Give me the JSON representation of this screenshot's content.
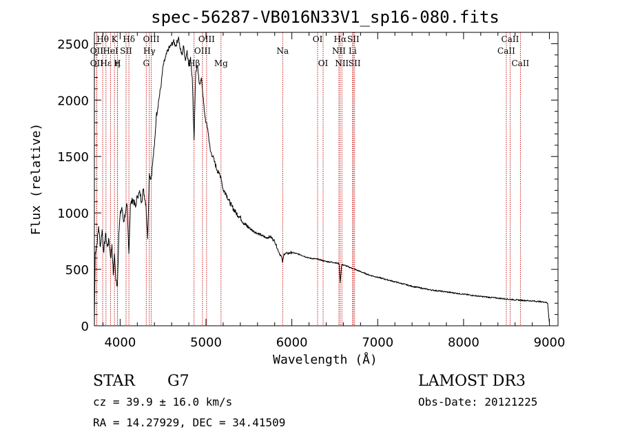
{
  "chart_data": {
    "type": "line",
    "title": "spec-56287-VB016N33V1_sp16-080.fits",
    "xlabel": "Wavelength (Å)",
    "ylabel": "Flux (relative)",
    "xlim": [
      3700,
      9100
    ],
    "ylim": [
      0,
      2600
    ],
    "x_ticks": [
      4000,
      5000,
      6000,
      7000,
      8000,
      9000
    ],
    "y_ticks": [
      0,
      500,
      1000,
      1500,
      2000,
      2500
    ],
    "line_color": "#000000",
    "marker_color": "#c00000",
    "series": [
      {
        "name": "flux",
        "x": [
          3700,
          3710,
          3730,
          3750,
          3770,
          3790,
          3810,
          3830,
          3850,
          3870,
          3890,
          3905,
          3920,
          3935,
          3950,
          3968,
          3985,
          4000,
          4020,
          4040,
          4060,
          4080,
          4102,
          4120,
          4150,
          4180,
          4200,
          4230,
          4250,
          4270,
          4300,
          4320,
          4340,
          4360,
          4380,
          4400,
          4420,
          4450,
          4480,
          4500,
          4530,
          4560,
          4590,
          4620,
          4650,
          4680,
          4700,
          4720,
          4740,
          4760,
          4780,
          4800,
          4820,
          4840,
          4861,
          4880,
          4900,
          4920,
          4950,
          4980,
          5000,
          5020,
          5050,
          5080,
          5100,
          5130,
          5150,
          5175,
          5200,
          5230,
          5260,
          5300,
          5350,
          5400,
          5450,
          5500,
          5550,
          5600,
          5650,
          5700,
          5750,
          5800,
          5850,
          5880,
          5893,
          5910,
          5950,
          6000,
          6100,
          6200,
          6300,
          6400,
          6500,
          6550,
          6563,
          6580,
          6600,
          6700,
          6800,
          6900,
          7000,
          7200,
          7400,
          7600,
          7800,
          8000,
          8200,
          8400,
          8600,
          8800,
          8950,
          8980,
          9000
        ],
        "y": [
          30,
          650,
          720,
          880,
          700,
          850,
          650,
          820,
          700,
          760,
          600,
          720,
          450,
          640,
          400,
          360,
          820,
          980,
          1050,
          920,
          1000,
          1070,
          640,
          1080,
          1120,
          1050,
          1150,
          1180,
          1100,
          1210,
          1080,
          770,
          1350,
          1300,
          1450,
          1600,
          1850,
          2000,
          2150,
          2300,
          2380,
          2450,
          2480,
          2520,
          2480,
          2560,
          2450,
          2400,
          2480,
          2350,
          2440,
          2300,
          2380,
          2200,
          1650,
          2250,
          2300,
          2150,
          2180,
          1900,
          1800,
          1750,
          1550,
          1500,
          1450,
          1380,
          1350,
          1320,
          1200,
          1180,
          1120,
          1060,
          1000,
          960,
          900,
          870,
          840,
          820,
          800,
          780,
          790,
          750,
          650,
          610,
          560,
          640,
          640,
          650,
          630,
          600,
          590,
          570,
          560,
          550,
          380,
          540,
          540,
          510,
          480,
          450,
          430,
          390,
          350,
          320,
          300,
          280,
          260,
          245,
          230,
          220,
          210,
          200,
          20
        ]
      }
    ],
    "line_markers": [
      {
        "label": "Hθ",
        "x": 3797,
        "row": 0
      },
      {
        "label": "OII",
        "x": 3727,
        "row": 1
      },
      {
        "label": "OII",
        "x": 3727,
        "row": 2
      },
      {
        "label": "Hε",
        "x": 3835,
        "row": 2
      },
      {
        "label": "HeI",
        "x": 3889,
        "row": 1
      },
      {
        "label": "K",
        "x": 3934,
        "row": 0
      },
      {
        "label": "η",
        "x": 3970,
        "row": 2
      },
      {
        "label": "SII",
        "x": 4069,
        "row": 1
      },
      {
        "label": "H",
        "x": 3968,
        "row": 2
      },
      {
        "label": "Hδ",
        "x": 4102,
        "row": 0
      },
      {
        "label": "OIII",
        "x": 4363,
        "row": 0
      },
      {
        "label": "Hγ",
        "x": 4340,
        "row": 1
      },
      {
        "label": "G",
        "x": 4304,
        "row": 2
      },
      {
        "label": "Hβ",
        "x": 4861,
        "row": 2
      },
      {
        "label": "OIII",
        "x": 4959,
        "row": 1
      },
      {
        "label": "OIII",
        "x": 5007,
        "row": 0
      },
      {
        "label": "Mg",
        "x": 5175,
        "row": 2
      },
      {
        "label": "Na",
        "x": 5893,
        "row": 1
      },
      {
        "label": "OI",
        "x": 6300,
        "row": 0
      },
      {
        "label": "OI",
        "x": 6364,
        "row": 2
      },
      {
        "label": "Hα",
        "x": 6563,
        "row": 0
      },
      {
        "label": "SII",
        "x": 6716,
        "row": 0
      },
      {
        "label": "NII",
        "x": 6548,
        "row": 1
      },
      {
        "label": "NII",
        "x": 6583,
        "row": 2
      },
      {
        "label": "Li",
        "x": 6708,
        "row": 1
      },
      {
        "label": "SII",
        "x": 6731,
        "row": 2
      },
      {
        "label": "CaII",
        "x": 8498,
        "row": 1
      },
      {
        "label": "CaII",
        "x": 8542,
        "row": 0
      },
      {
        "label": "CaII",
        "x": 8662,
        "row": 2
      }
    ]
  },
  "info": {
    "class_label": "STAR",
    "subclass": "G7",
    "survey": "LAMOST DR3",
    "cz": "cz = 39.9 ± 16.0 km/s",
    "obs_date": "Obs-Date: 20121225",
    "radec": "RA =  14.27929, DEC =  34.41509"
  }
}
